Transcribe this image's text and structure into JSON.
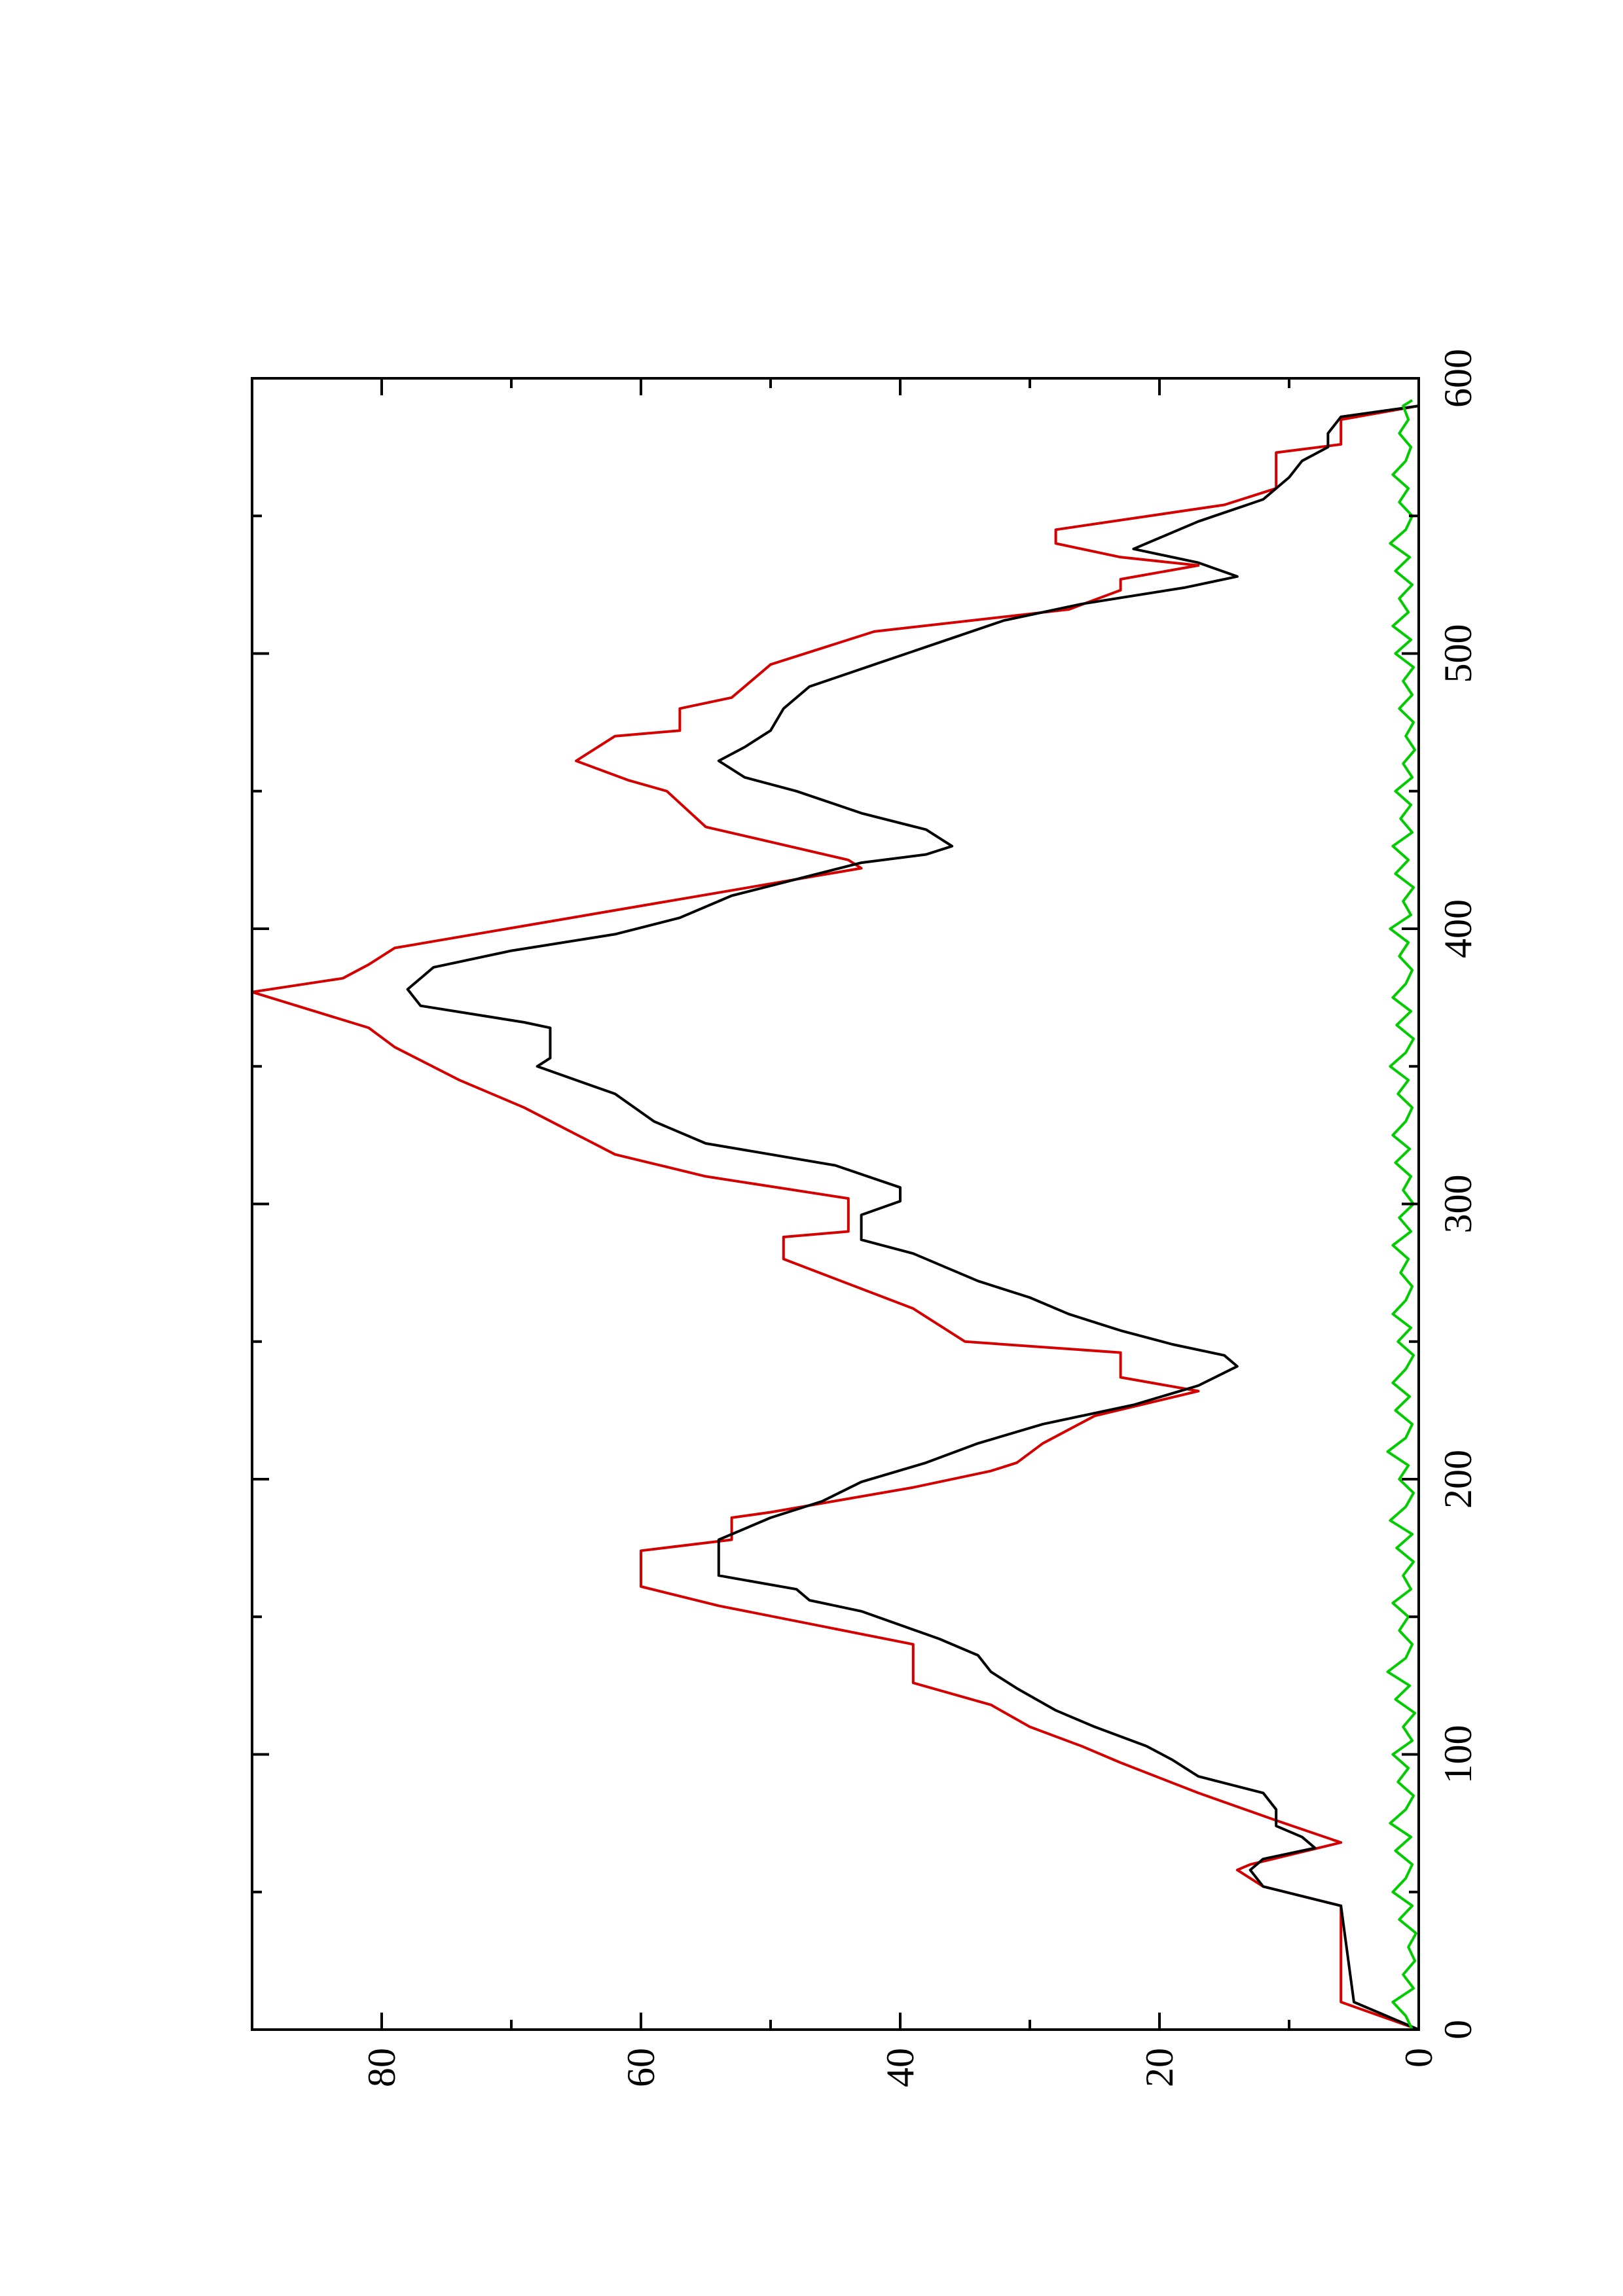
{
  "chart_data": {
    "type": "line",
    "orientation": "rotated-90-ccw",
    "title": "",
    "xlabel": "",
    "ylabel": "",
    "xlim": [
      0,
      600
    ],
    "ylim": [
      0,
      90
    ],
    "x_major_ticks": [
      0,
      100,
      200,
      300,
      400,
      500,
      600
    ],
    "x_minor_ticks": [
      50,
      150,
      250,
      350,
      450,
      550
    ],
    "y_major_ticks": [
      0,
      20,
      40,
      60,
      80
    ],
    "y_minor_ticks": [
      10,
      30,
      50,
      70
    ],
    "x_tick_labels": [
      "0",
      "100",
      "200",
      "300",
      "400",
      "500",
      "600"
    ],
    "y_tick_labels": [
      "0",
      "20",
      "40",
      "60",
      "80"
    ],
    "grid": false,
    "series": [
      {
        "color": "#d40000",
        "points": [
          [
            0,
            0
          ],
          [
            10,
            6
          ],
          [
            45,
            6
          ],
          [
            52,
            12
          ],
          [
            58,
            14
          ],
          [
            60,
            13
          ],
          [
            68,
            6
          ],
          [
            76,
            11
          ],
          [
            86,
            17
          ],
          [
            97,
            23
          ],
          [
            103,
            26
          ],
          [
            110,
            30
          ],
          [
            118,
            33
          ],
          [
            126,
            39
          ],
          [
            140,
            39
          ],
          [
            154,
            54
          ],
          [
            161,
            60
          ],
          [
            174,
            60
          ],
          [
            178,
            53
          ],
          [
            186,
            53
          ],
          [
            188,
            50
          ],
          [
            197,
            39
          ],
          [
            203,
            33
          ],
          [
            206,
            31
          ],
          [
            213,
            29
          ],
          [
            218,
            27
          ],
          [
            223,
            25
          ],
          [
            232,
            17
          ],
          [
            237,
            23
          ],
          [
            246,
            23
          ],
          [
            250,
            35
          ],
          [
            262,
            39
          ],
          [
            280,
            49
          ],
          [
            288,
            49
          ],
          [
            290,
            44
          ],
          [
            302,
            44
          ],
          [
            310,
            55
          ],
          [
            318,
            62
          ],
          [
            335,
            69
          ],
          [
            345,
            74
          ],
          [
            357,
            79
          ],
          [
            364,
            81
          ],
          [
            377,
            90
          ],
          [
            382,
            83
          ],
          [
            387,
            81
          ],
          [
            393,
            79
          ],
          [
            422,
            43
          ],
          [
            425,
            44
          ],
          [
            437,
            55
          ],
          [
            450,
            58
          ],
          [
            454,
            61
          ],
          [
            461,
            65
          ],
          [
            470,
            62
          ],
          [
            472,
            57
          ],
          [
            480,
            57
          ],
          [
            484,
            53
          ],
          [
            496,
            50
          ],
          [
            508,
            42
          ],
          [
            516,
            27
          ],
          [
            523,
            23
          ],
          [
            527,
            23
          ],
          [
            532,
            17
          ],
          [
            535,
            23
          ],
          [
            540,
            28
          ],
          [
            545,
            28
          ],
          [
            554,
            15
          ],
          [
            560,
            11
          ],
          [
            573,
            11
          ],
          [
            576,
            6
          ],
          [
            585,
            6
          ],
          [
            590,
            0
          ]
        ]
      },
      {
        "color": "#000000",
        "points": [
          [
            0,
            0
          ],
          [
            10,
            5
          ],
          [
            45,
            6
          ],
          [
            52,
            12
          ],
          [
            58,
            13
          ],
          [
            62,
            12
          ],
          [
            66,
            8
          ],
          [
            70,
            9
          ],
          [
            74,
            11
          ],
          [
            80,
            11
          ],
          [
            86,
            12
          ],
          [
            92,
            17
          ],
          [
            98,
            19
          ],
          [
            103,
            21
          ],
          [
            110,
            25
          ],
          [
            116,
            28
          ],
          [
            124,
            31
          ],
          [
            130,
            33
          ],
          [
            136,
            34
          ],
          [
            142,
            37
          ],
          [
            152,
            43
          ],
          [
            156,
            47
          ],
          [
            160,
            48
          ],
          [
            165,
            54
          ],
          [
            178,
            54
          ],
          [
            186,
            50
          ],
          [
            192,
            46
          ],
          [
            199,
            43
          ],
          [
            206,
            38
          ],
          [
            213,
            34
          ],
          [
            220,
            29
          ],
          [
            227,
            22
          ],
          [
            234,
            17
          ],
          [
            241,
            14
          ],
          [
            245,
            15
          ],
          [
            249,
            19
          ],
          [
            254,
            23
          ],
          [
            260,
            27
          ],
          [
            266,
            30
          ],
          [
            272,
            34
          ],
          [
            282,
            39
          ],
          [
            287,
            43
          ],
          [
            296,
            43
          ],
          [
            301,
            40
          ],
          [
            306,
            40
          ],
          [
            314,
            45
          ],
          [
            322,
            55
          ],
          [
            330,
            59
          ],
          [
            340,
            62
          ],
          [
            350,
            68
          ],
          [
            353,
            67
          ],
          [
            358,
            67
          ],
          [
            364,
            67
          ],
          [
            366,
            69
          ],
          [
            372,
            77
          ],
          [
            378,
            78
          ],
          [
            386,
            76
          ],
          [
            392,
            70
          ],
          [
            398,
            62
          ],
          [
            404,
            57
          ],
          [
            412,
            53
          ],
          [
            418,
            48
          ],
          [
            424,
            43
          ],
          [
            427,
            38
          ],
          [
            430,
            36
          ],
          [
            436,
            38
          ],
          [
            442,
            43
          ],
          [
            450,
            48
          ],
          [
            455,
            52
          ],
          [
            461,
            54
          ],
          [
            466,
            52
          ],
          [
            472,
            50
          ],
          [
            480,
            49
          ],
          [
            488,
            47
          ],
          [
            496,
            42
          ],
          [
            504,
            37
          ],
          [
            512,
            32
          ],
          [
            518,
            26
          ],
          [
            524,
            18
          ],
          [
            528,
            14
          ],
          [
            533,
            17
          ],
          [
            538,
            22
          ],
          [
            542,
            20
          ],
          [
            548,
            17
          ],
          [
            556,
            12
          ],
          [
            564,
            10
          ],
          [
            570,
            9
          ],
          [
            575,
            7
          ],
          [
            580,
            7
          ],
          [
            586,
            6
          ],
          [
            590,
            0
          ]
        ]
      },
      {
        "color": "#00cc00",
        "points": [
          [
            0,
            0.5
          ],
          [
            5,
            1
          ],
          [
            10,
            2
          ],
          [
            15,
            0.4
          ],
          [
            20,
            1.2
          ],
          [
            25,
            0.3
          ],
          [
            30,
            0.8
          ],
          [
            35,
            0.2
          ],
          [
            40,
            1.5
          ],
          [
            45,
            0.5
          ],
          [
            50,
            2
          ],
          [
            55,
            1
          ],
          [
            60,
            0.5
          ],
          [
            65,
            1.8
          ],
          [
            70,
            0.6
          ],
          [
            75,
            2.2
          ],
          [
            80,
            1
          ],
          [
            85,
            0.4
          ],
          [
            90,
            1.6
          ],
          [
            95,
            0.8
          ],
          [
            100,
            2
          ],
          [
            105,
            0.5
          ],
          [
            110,
            1.2
          ],
          [
            115,
            0.3
          ],
          [
            120,
            1.8
          ],
          [
            125,
            0.7
          ],
          [
            130,
            2.4
          ],
          [
            135,
            1
          ],
          [
            140,
            0.5
          ],
          [
            145,
            1.5
          ],
          [
            150,
            0.8
          ],
          [
            155,
            2
          ],
          [
            160,
            0.6
          ],
          [
            165,
            1.2
          ],
          [
            170,
            0.4
          ],
          [
            175,
            1.7
          ],
          [
            180,
            0.5
          ],
          [
            185,
            2.2
          ],
          [
            190,
            1
          ],
          [
            195,
            0.4
          ],
          [
            200,
            1.5
          ],
          [
            205,
            0.8
          ],
          [
            210,
            2.4
          ],
          [
            215,
            1
          ],
          [
            220,
            0.5
          ],
          [
            225,
            1.8
          ],
          [
            230,
            0.7
          ],
          [
            235,
            2
          ],
          [
            240,
            1
          ],
          [
            245,
            0.4
          ],
          [
            250,
            1.6
          ],
          [
            255,
            0.6
          ],
          [
            260,
            2
          ],
          [
            265,
            1
          ],
          [
            270,
            0.5
          ],
          [
            275,
            1.4
          ],
          [
            280,
            0.8
          ],
          [
            285,
            2
          ],
          [
            290,
            0.6
          ],
          [
            295,
            1.5
          ],
          [
            300,
            0.4
          ],
          [
            305,
            1.2
          ],
          [
            310,
            0.6
          ],
          [
            315,
            1.8
          ],
          [
            320,
            0.7
          ],
          [
            325,
            2
          ],
          [
            330,
            1
          ],
          [
            335,
            0.5
          ],
          [
            340,
            1.6
          ],
          [
            345,
            0.8
          ],
          [
            350,
            2.2
          ],
          [
            355,
            1
          ],
          [
            360,
            0.4
          ],
          [
            365,
            1.7
          ],
          [
            370,
            0.6
          ],
          [
            375,
            2
          ],
          [
            380,
            1
          ],
          [
            385,
            0.5
          ],
          [
            390,
            1.5
          ],
          [
            395,
            0.8
          ],
          [
            400,
            2.2
          ],
          [
            405,
            0.6
          ],
          [
            410,
            1.2
          ],
          [
            415,
            0.4
          ],
          [
            420,
            1.8
          ],
          [
            425,
            0.8
          ],
          [
            430,
            2
          ],
          [
            435,
            0.5
          ],
          [
            440,
            1.4
          ],
          [
            445,
            0.6
          ],
          [
            450,
            1.8
          ],
          [
            455,
            0.5
          ],
          [
            460,
            1.2
          ],
          [
            465,
            0.3
          ],
          [
            470,
            1
          ],
          [
            475,
            0.4
          ],
          [
            480,
            1.5
          ],
          [
            485,
            0.5
          ],
          [
            490,
            1.2
          ],
          [
            495,
            0.4
          ],
          [
            500,
            1.8
          ],
          [
            505,
            0.6
          ],
          [
            510,
            2
          ],
          [
            515,
            0.8
          ],
          [
            520,
            1.5
          ],
          [
            525,
            0.5
          ],
          [
            530,
            1.8
          ],
          [
            535,
            0.7
          ],
          [
            540,
            2.2
          ],
          [
            545,
            1
          ],
          [
            550,
            0.5
          ],
          [
            555,
            1.5
          ],
          [
            560,
            0.8
          ],
          [
            565,
            2
          ],
          [
            570,
            1
          ],
          [
            575,
            0.6
          ],
          [
            580,
            1.5
          ],
          [
            585,
            0.8
          ],
          [
            590,
            1.2
          ],
          [
            592,
            0.5
          ]
        ]
      }
    ]
  }
}
